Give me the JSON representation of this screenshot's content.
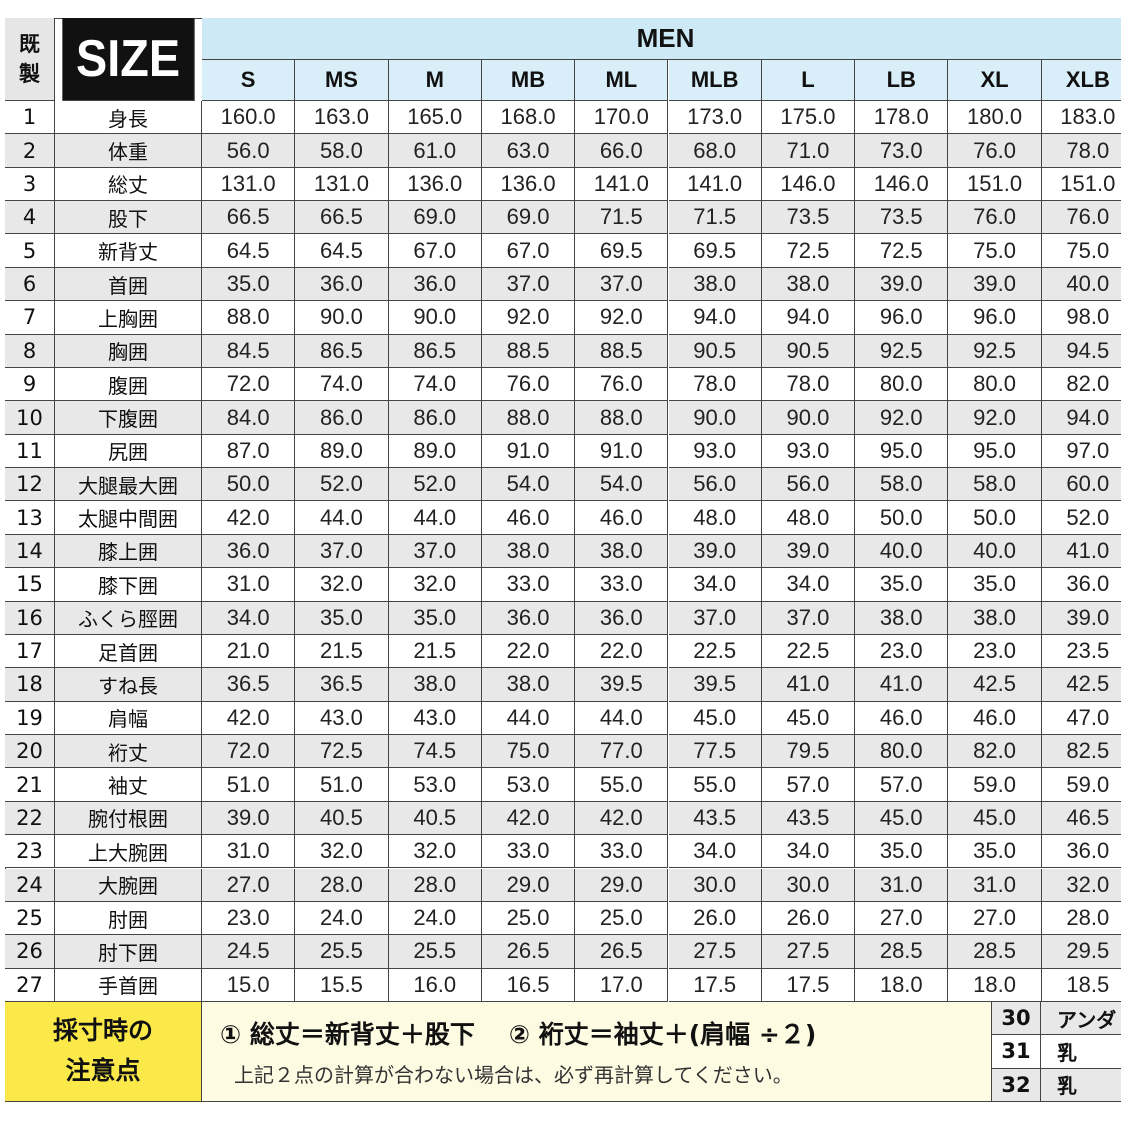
{
  "header": {
    "corner": [
      "既",
      "製"
    ],
    "size_label": "SIZE",
    "group": "MEN",
    "sizes": [
      "S",
      "MS",
      "M",
      "MB",
      "ML",
      "MLB",
      "L",
      "LB",
      "XL",
      "XLB"
    ]
  },
  "rows": [
    {
      "no": "1",
      "label": "身長",
      "values": [
        "160.0",
        "163.0",
        "165.0",
        "168.0",
        "170.0",
        "173.0",
        "175.0",
        "178.0",
        "180.0",
        "183.0"
      ]
    },
    {
      "no": "2",
      "label": "体重",
      "values": [
        "56.0",
        "58.0",
        "61.0",
        "63.0",
        "66.0",
        "68.0",
        "71.0",
        "73.0",
        "76.0",
        "78.0"
      ]
    },
    {
      "no": "3",
      "label": "総丈",
      "values": [
        "131.0",
        "131.0",
        "136.0",
        "136.0",
        "141.0",
        "141.0",
        "146.0",
        "146.0",
        "151.0",
        "151.0"
      ]
    },
    {
      "no": "4",
      "label": "股下",
      "values": [
        "66.5",
        "66.5",
        "69.0",
        "69.0",
        "71.5",
        "71.5",
        "73.5",
        "73.5",
        "76.0",
        "76.0"
      ]
    },
    {
      "no": "5",
      "label": "新背丈",
      "values": [
        "64.5",
        "64.5",
        "67.0",
        "67.0",
        "69.5",
        "69.5",
        "72.5",
        "72.5",
        "75.0",
        "75.0"
      ]
    },
    {
      "no": "6",
      "label": "首囲",
      "values": [
        "35.0",
        "36.0",
        "36.0",
        "37.0",
        "37.0",
        "38.0",
        "38.0",
        "39.0",
        "39.0",
        "40.0"
      ]
    },
    {
      "no": "7",
      "label": "上胸囲",
      "values": [
        "88.0",
        "90.0",
        "90.0",
        "92.0",
        "92.0",
        "94.0",
        "94.0",
        "96.0",
        "96.0",
        "98.0"
      ]
    },
    {
      "no": "8",
      "label": "胸囲",
      "values": [
        "84.5",
        "86.5",
        "86.5",
        "88.5",
        "88.5",
        "90.5",
        "90.5",
        "92.5",
        "92.5",
        "94.5"
      ]
    },
    {
      "no": "9",
      "label": "腹囲",
      "values": [
        "72.0",
        "74.0",
        "74.0",
        "76.0",
        "76.0",
        "78.0",
        "78.0",
        "80.0",
        "80.0",
        "82.0"
      ]
    },
    {
      "no": "10",
      "label": "下腹囲",
      "values": [
        "84.0",
        "86.0",
        "86.0",
        "88.0",
        "88.0",
        "90.0",
        "90.0",
        "92.0",
        "92.0",
        "94.0"
      ]
    },
    {
      "no": "11",
      "label": "尻囲",
      "values": [
        "87.0",
        "89.0",
        "89.0",
        "91.0",
        "91.0",
        "93.0",
        "93.0",
        "95.0",
        "95.0",
        "97.0"
      ]
    },
    {
      "no": "12",
      "label": "大腿最大囲",
      "values": [
        "50.0",
        "52.0",
        "52.0",
        "54.0",
        "54.0",
        "56.0",
        "56.0",
        "58.0",
        "58.0",
        "60.0"
      ]
    },
    {
      "no": "13",
      "label": "太腿中間囲",
      "values": [
        "42.0",
        "44.0",
        "44.0",
        "46.0",
        "46.0",
        "48.0",
        "48.0",
        "50.0",
        "50.0",
        "52.0"
      ]
    },
    {
      "no": "14",
      "label": "膝上囲",
      "values": [
        "36.0",
        "37.0",
        "37.0",
        "38.0",
        "38.0",
        "39.0",
        "39.0",
        "40.0",
        "40.0",
        "41.0"
      ]
    },
    {
      "no": "15",
      "label": "膝下囲",
      "values": [
        "31.0",
        "32.0",
        "32.0",
        "33.0",
        "33.0",
        "34.0",
        "34.0",
        "35.0",
        "35.0",
        "36.0"
      ]
    },
    {
      "no": "16",
      "label": "ふくら脛囲",
      "values": [
        "34.0",
        "35.0",
        "35.0",
        "36.0",
        "36.0",
        "37.0",
        "37.0",
        "38.0",
        "38.0",
        "39.0"
      ]
    },
    {
      "no": "17",
      "label": "足首囲",
      "values": [
        "21.0",
        "21.5",
        "21.5",
        "22.0",
        "22.0",
        "22.5",
        "22.5",
        "23.0",
        "23.0",
        "23.5"
      ]
    },
    {
      "no": "18",
      "label": "すね長",
      "values": [
        "36.5",
        "36.5",
        "38.0",
        "38.0",
        "39.5",
        "39.5",
        "41.0",
        "41.0",
        "42.5",
        "42.5"
      ]
    },
    {
      "no": "19",
      "label": "肩幅",
      "values": [
        "42.0",
        "43.0",
        "43.0",
        "44.0",
        "44.0",
        "45.0",
        "45.0",
        "46.0",
        "46.0",
        "47.0"
      ]
    },
    {
      "no": "20",
      "label": "裄丈",
      "values": [
        "72.0",
        "72.5",
        "74.5",
        "75.0",
        "77.0",
        "77.5",
        "79.5",
        "80.0",
        "82.0",
        "82.5"
      ]
    },
    {
      "no": "21",
      "label": "袖丈",
      "values": [
        "51.0",
        "51.0",
        "53.0",
        "53.0",
        "55.0",
        "55.0",
        "57.0",
        "57.0",
        "59.0",
        "59.0"
      ]
    },
    {
      "no": "22",
      "label": "腕付根囲",
      "values": [
        "39.0",
        "40.5",
        "40.5",
        "42.0",
        "42.0",
        "43.5",
        "43.5",
        "45.0",
        "45.0",
        "46.5"
      ]
    },
    {
      "no": "23",
      "label": "上大腕囲",
      "values": [
        "31.0",
        "32.0",
        "32.0",
        "33.0",
        "33.0",
        "34.0",
        "34.0",
        "35.0",
        "35.0",
        "36.0"
      ]
    },
    {
      "no": "24",
      "label": "大腕囲",
      "values": [
        "27.0",
        "28.0",
        "28.0",
        "29.0",
        "29.0",
        "30.0",
        "30.0",
        "31.0",
        "31.0",
        "32.0"
      ]
    },
    {
      "no": "25",
      "label": "肘囲",
      "values": [
        "23.0",
        "24.0",
        "24.0",
        "25.0",
        "25.0",
        "26.0",
        "26.0",
        "27.0",
        "27.0",
        "28.0"
      ]
    },
    {
      "no": "26",
      "label": "肘下囲",
      "values": [
        "24.5",
        "25.5",
        "25.5",
        "26.5",
        "26.5",
        "27.5",
        "27.5",
        "28.5",
        "28.5",
        "29.5"
      ]
    },
    {
      "no": "27",
      "label": "手首囲",
      "values": [
        "15.0",
        "15.5",
        "16.0",
        "16.5",
        "17.0",
        "17.5",
        "17.5",
        "18.0",
        "18.0",
        "18.5"
      ]
    }
  ],
  "footer": {
    "label": [
      "採寸時の",
      "注意点"
    ],
    "formulas": [
      "① 総丈＝新背丈＋股下",
      "② 裄丈＝袖丈＋(肩幅 ÷２)"
    ],
    "note": "上記２点の計算が合わない場合は、必ず再計算してください。",
    "extra_rows": [
      {
        "no": "30",
        "label": "アンダ"
      },
      {
        "no": "31",
        "label": "乳"
      },
      {
        "no": "32",
        "label": "乳"
      }
    ]
  }
}
